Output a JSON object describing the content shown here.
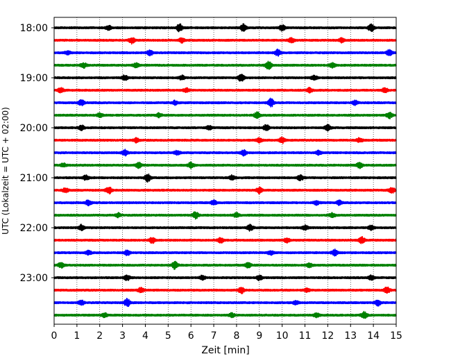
{
  "chart_data": {
    "type": "line",
    "title": "",
    "xlabel": "Zeit  [min]",
    "ylabel": "UTC (Lokalzeit = UTC + 02:00)",
    "xlim": [
      0,
      15
    ],
    "x_ticks": [
      "0",
      "1",
      "2",
      "3",
      "4",
      "5",
      "6",
      "7",
      "8",
      "9",
      "10",
      "11",
      "12",
      "13",
      "14",
      "15"
    ],
    "y_ticks": [
      "18:00",
      "19:00",
      "20:00",
      "21:00",
      "22:00",
      "23:00"
    ],
    "grid": "vertical-dotted",
    "trace_colors": [
      "#000000",
      "#ff0000",
      "#0000ff",
      "#008000"
    ],
    "series": [
      {
        "start": "18:00",
        "color": "#000000",
        "events": [
          [
            5.5,
            1.6
          ],
          [
            8.3,
            1.4
          ],
          [
            10,
            1.2
          ],
          [
            13.9,
            1.5
          ],
          [
            2.4,
            0.9
          ]
        ]
      },
      {
        "start": "18:15",
        "color": "#ff0000",
        "events": [
          [
            3.4,
            1.3
          ],
          [
            5.6,
            0.9
          ],
          [
            10.4,
            1.0
          ],
          [
            12.6,
            0.9
          ]
        ]
      },
      {
        "start": "18:30",
        "color": "#0000ff",
        "events": [
          [
            4.2,
            1.2
          ],
          [
            9.8,
            1.3
          ],
          [
            14.7,
            1.2
          ],
          [
            0.6,
            0.8
          ]
        ]
      },
      {
        "start": "18:45",
        "color": "#008000",
        "events": [
          [
            9.4,
            1.8
          ],
          [
            3.6,
            0.9
          ],
          [
            12.2,
            0.9
          ],
          [
            1.3,
            1.0
          ]
        ]
      },
      {
        "start": "19:00",
        "color": "#000000",
        "events": [
          [
            3.1,
            1.0
          ],
          [
            8.2,
            1.6
          ],
          [
            11.4,
            0.9
          ],
          [
            5.6,
            0.9
          ]
        ]
      },
      {
        "start": "19:15",
        "color": "#ff0000",
        "events": [
          [
            0.3,
            1.0
          ],
          [
            5.8,
            0.8
          ],
          [
            11.2,
            0.9
          ],
          [
            14.5,
            1.0
          ]
        ]
      },
      {
        "start": "19:30",
        "color": "#0000ff",
        "events": [
          [
            1.2,
            1.2
          ],
          [
            9.5,
            1.8
          ],
          [
            5.3,
            0.8
          ],
          [
            13.2,
            0.9
          ]
        ]
      },
      {
        "start": "19:45",
        "color": "#008000",
        "events": [
          [
            8.9,
            1.2
          ],
          [
            14.7,
            1.2
          ],
          [
            4.6,
            0.9
          ],
          [
            2.0,
            0.8
          ]
        ]
      },
      {
        "start": "20:00",
        "color": "#000000",
        "events": [
          [
            9.3,
            1.3
          ],
          [
            12,
            1.4
          ],
          [
            1.2,
            0.9
          ],
          [
            6.8,
            0.8
          ]
        ]
      },
      {
        "start": "20:15",
        "color": "#ff0000",
        "events": [
          [
            10,
            1.2
          ],
          [
            9,
            1.0
          ],
          [
            3.6,
            0.8
          ],
          [
            13.4,
            0.9
          ]
        ]
      },
      {
        "start": "20:30",
        "color": "#0000ff",
        "events": [
          [
            3.1,
            1.2
          ],
          [
            8.3,
            1.1
          ],
          [
            11.6,
            0.8
          ],
          [
            5.4,
            0.8
          ]
        ]
      },
      {
        "start": "20:45",
        "color": "#008000",
        "events": [
          [
            3.7,
            1.1
          ],
          [
            6.0,
            1.1
          ],
          [
            13.4,
            1.2
          ],
          [
            0.4,
            0.8
          ]
        ]
      },
      {
        "start": "21:00",
        "color": "#000000",
        "events": [
          [
            4.1,
            1.6
          ],
          [
            10.8,
            1.2
          ],
          [
            1.4,
            1.0
          ],
          [
            7.8,
            0.9
          ]
        ]
      },
      {
        "start": "21:15",
        "color": "#ff0000",
        "events": [
          [
            2.4,
            1.5
          ],
          [
            9.0,
            1.2
          ],
          [
            14.8,
            1.3
          ],
          [
            0.5,
            0.9
          ]
        ]
      },
      {
        "start": "21:30",
        "color": "#0000ff",
        "events": [
          [
            1.5,
            1.1
          ],
          [
            7.0,
            0.9
          ],
          [
            11.5,
            0.9
          ],
          [
            12.5,
            0.9
          ]
        ]
      },
      {
        "start": "21:45",
        "color": "#008000",
        "events": [
          [
            6.2,
            1.5
          ],
          [
            8.0,
            0.9
          ],
          [
            12.2,
            0.8
          ],
          [
            2.8,
            0.8
          ]
        ]
      },
      {
        "start": "22:00",
        "color": "#000000",
        "events": [
          [
            1.2,
            1.2
          ],
          [
            8.6,
            1.2
          ],
          [
            11.0,
            0.9
          ],
          [
            13.9,
            1.0
          ]
        ]
      },
      {
        "start": "22:15",
        "color": "#ff0000",
        "events": [
          [
            4.3,
            1.2
          ],
          [
            7.3,
            1.1
          ],
          [
            13.5,
            1.3
          ],
          [
            10.2,
            0.9
          ]
        ]
      },
      {
        "start": "22:30",
        "color": "#0000ff",
        "events": [
          [
            3.2,
            1.1
          ],
          [
            12.3,
            1.3
          ],
          [
            1.5,
            0.9
          ],
          [
            9.5,
            0.8
          ]
        ]
      },
      {
        "start": "22:45",
        "color": "#008000",
        "events": [
          [
            5.3,
            1.6
          ],
          [
            0.3,
            1.0
          ],
          [
            8.5,
            1.0
          ],
          [
            11.2,
            0.9
          ]
        ]
      },
      {
        "start": "23:00",
        "color": "#000000",
        "events": [
          [
            3.2,
            1.1
          ],
          [
            9.0,
            1.0
          ],
          [
            13.9,
            1.0
          ],
          [
            6.5,
            0.8
          ]
        ]
      },
      {
        "start": "23:15",
        "color": "#ff0000",
        "events": [
          [
            8.2,
            1.3
          ],
          [
            14.6,
            1.3
          ],
          [
            3.8,
            1.0
          ],
          [
            11.1,
            0.8
          ]
        ]
      },
      {
        "start": "23:30",
        "color": "#0000ff",
        "events": [
          [
            3.2,
            1.6
          ],
          [
            14.2,
            1.2
          ],
          [
            1.2,
            0.9
          ],
          [
            10.6,
            0.8
          ]
        ]
      },
      {
        "start": "23:45",
        "color": "#008000",
        "events": [
          [
            13.6,
            1.3
          ],
          [
            2.2,
            0.9
          ],
          [
            7.8,
            0.8
          ],
          [
            11.5,
            0.8
          ]
        ]
      }
    ]
  }
}
